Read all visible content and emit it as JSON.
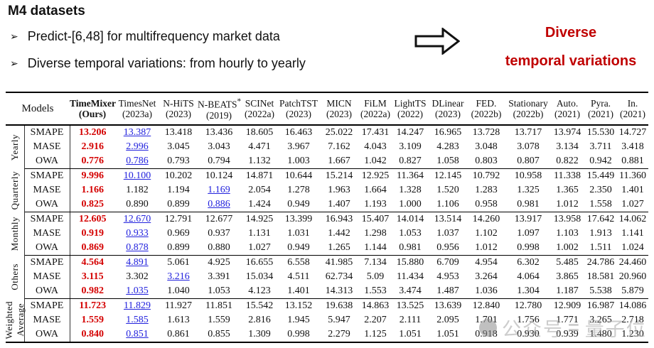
{
  "slide": {
    "title": "M4 datasets",
    "bullet_glyph": "➢",
    "bullets": [
      "Predict-[6,48] for multifrequency market data",
      "Diverse temporal variations: from hourly to yearly"
    ],
    "callout": {
      "line1": "Diverse",
      "line2": "temporal variations",
      "color": "#c00000"
    },
    "arrow_icon": "block-right-arrow"
  },
  "table": {
    "models_header": "Models",
    "best_color": "#d40000",
    "second_color": "#2222dd",
    "columns": [
      {
        "name": "TimeMixer",
        "year": "(Ours)",
        "ours": true
      },
      {
        "name": "TimesNet",
        "year": "(2023a)"
      },
      {
        "name": "N-HiTS",
        "year": "(2023)"
      },
      {
        "name": "N-BEATS",
        "sup": "*",
        "year": "(2019)"
      },
      {
        "name": "SCINet",
        "year": "(2022a)"
      },
      {
        "name": "PatchTST",
        "year": "(2023)"
      },
      {
        "name": "MICN",
        "year": "(2023)"
      },
      {
        "name": "FiLM",
        "year": "(2022a)"
      },
      {
        "name": "LightTS",
        "year": "(2022)"
      },
      {
        "name": "DLinear",
        "year": "(2023)"
      },
      {
        "name": "FED.",
        "year": "(2022b)"
      },
      {
        "name": "Stationary",
        "year": "(2022b)"
      },
      {
        "name": "Auto.",
        "year": "(2021)"
      },
      {
        "name": "Pyra.",
        "year": "(2021)"
      },
      {
        "name": "In.",
        "year": "(2021)"
      }
    ],
    "groups": [
      {
        "label": "Yearly",
        "rows": [
          {
            "metric": "SMAPE",
            "best": 0,
            "second": 1,
            "values": [
              "13.206",
              "13.387",
              "13.418",
              "13.436",
              "18.605",
              "16.463",
              "25.022",
              "17.431",
              "14.247",
              "16.965",
              "13.728",
              "13.717",
              "13.974",
              "15.530",
              "14.727"
            ]
          },
          {
            "metric": "MASE",
            "best": 0,
            "second": 1,
            "values": [
              "2.916",
              "2.996",
              "3.045",
              "3.043",
              "4.471",
              "3.967",
              "7.162",
              "4.043",
              "3.109",
              "4.283",
              "3.048",
              "3.078",
              "3.134",
              "3.711",
              "3.418"
            ]
          },
          {
            "metric": "OWA",
            "best": 0,
            "second": 1,
            "values": [
              "0.776",
              "0.786",
              "0.793",
              "0.794",
              "1.132",
              "1.003",
              "1.667",
              "1.042",
              "0.827",
              "1.058",
              "0.803",
              "0.807",
              "0.822",
              "0.942",
              "0.881"
            ]
          }
        ]
      },
      {
        "label": "Quarterly",
        "rows": [
          {
            "metric": "SMAPE",
            "best": 0,
            "second": 1,
            "values": [
              "9.996",
              "10.100",
              "10.202",
              "10.124",
              "14.871",
              "10.644",
              "15.214",
              "12.925",
              "11.364",
              "12.145",
              "10.792",
              "10.958",
              "11.338",
              "15.449",
              "11.360"
            ]
          },
          {
            "metric": "MASE",
            "best": 0,
            "second": 3,
            "values": [
              "1.166",
              "1.182",
              "1.194",
              "1.169",
              "2.054",
              "1.278",
              "1.963",
              "1.664",
              "1.328",
              "1.520",
              "1.283",
              "1.325",
              "1.365",
              "2.350",
              "1.401"
            ]
          },
          {
            "metric": "OWA",
            "best": 0,
            "second": 3,
            "values": [
              "0.825",
              "0.890",
              "0.899",
              "0.886",
              "1.424",
              "0.949",
              "1.407",
              "1.193",
              "1.000",
              "1.106",
              "0.958",
              "0.981",
              "1.012",
              "1.558",
              "1.027"
            ]
          }
        ]
      },
      {
        "label": "Monthly",
        "rows": [
          {
            "metric": "SMAPE",
            "best": 0,
            "second": 1,
            "values": [
              "12.605",
              "12.670",
              "12.791",
              "12.677",
              "14.925",
              "13.399",
              "16.943",
              "15.407",
              "14.014",
              "13.514",
              "14.260",
              "13.917",
              "13.958",
              "17.642",
              "14.062"
            ]
          },
          {
            "metric": "MASE",
            "best": 0,
            "second": 1,
            "values": [
              "0.919",
              "0.933",
              "0.969",
              "0.937",
              "1.131",
              "1.031",
              "1.442",
              "1.298",
              "1.053",
              "1.037",
              "1.102",
              "1.097",
              "1.103",
              "1.913",
              "1.141"
            ]
          },
          {
            "metric": "OWA",
            "best": 0,
            "second": 1,
            "values": [
              "0.869",
              "0.878",
              "0.899",
              "0.880",
              "1.027",
              "0.949",
              "1.265",
              "1.144",
              "0.981",
              "0.956",
              "1.012",
              "0.998",
              "1.002",
              "1.511",
              "1.024"
            ]
          }
        ]
      },
      {
        "label": "Others",
        "rows": [
          {
            "metric": "SMAPE",
            "best": 0,
            "second": 1,
            "values": [
              "4.564",
              "4.891",
              "5.061",
              "4.925",
              "16.655",
              "6.558",
              "41.985",
              "7.134",
              "15.880",
              "6.709",
              "4.954",
              "6.302",
              "5.485",
              "24.786",
              "24.460"
            ]
          },
          {
            "metric": "MASE",
            "best": 0,
            "second": 2,
            "values": [
              "3.115",
              "3.302",
              "3.216",
              "3.391",
              "15.034",
              "4.511",
              "62.734",
              "5.09",
              "11.434",
              "4.953",
              "3.264",
              "4.064",
              "3.865",
              "18.581",
              "20.960"
            ]
          },
          {
            "metric": "OWA",
            "best": 0,
            "second": 1,
            "values": [
              "0.982",
              "1.035",
              "1.040",
              "1.053",
              "4.123",
              "1.401",
              "14.313",
              "1.553",
              "3.474",
              "1.487",
              "1.036",
              "1.304",
              "1.187",
              "5.538",
              "5.879"
            ]
          }
        ]
      },
      {
        "label": "Weighted Average",
        "rows": [
          {
            "metric": "SMAPE",
            "best": 0,
            "second": 1,
            "values": [
              "11.723",
              "11.829",
              "11.927",
              "11.851",
              "15.542",
              "13.152",
              "19.638",
              "14.863",
              "13.525",
              "13.639",
              "12.840",
              "12.780",
              "12.909",
              "16.987",
              "14.086"
            ]
          },
          {
            "metric": "MASE",
            "best": 0,
            "second": 1,
            "values": [
              "1.559",
              "1.585",
              "1.613",
              "1.559",
              "2.816",
              "1.945",
              "5.947",
              "2.207",
              "2.111",
              "2.095",
              "1.701",
              "1.756",
              "1.771",
              "3.265",
              "2.718"
            ]
          },
          {
            "metric": "OWA",
            "best": 0,
            "second": 1,
            "values": [
              "0.840",
              "0.851",
              "0.861",
              "0.855",
              "1.309",
              "0.998",
              "2.279",
              "1.125",
              "1.051",
              "1.051",
              "0.918",
              "0.930",
              "0.939",
              "1.480",
              "1.230"
            ]
          }
        ]
      }
    ]
  },
  "watermark": {
    "left": "公众号",
    "separator": "=",
    "right": "量子位"
  }
}
